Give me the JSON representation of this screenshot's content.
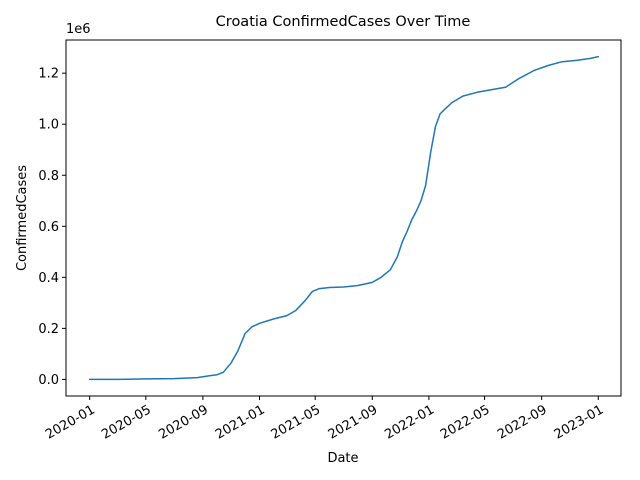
{
  "chart_data": {
    "type": "line",
    "title": "Croatia  ConfirmedCases Over Time",
    "xlabel": "Date",
    "ylabel": "ConfirmedCases",
    "y_offset_label": "1e6",
    "grid": false,
    "legend": false,
    "series_color": "#1f77b4",
    "xlim": [
      "2019-11-11",
      "2023-02-19"
    ],
    "ylim": [
      -0.065,
      1.33
    ],
    "x_ticks": [
      {
        "date": "2020-01-01",
        "label": "2020-01"
      },
      {
        "date": "2020-05-01",
        "label": "2020-05"
      },
      {
        "date": "2020-09-01",
        "label": "2020-09"
      },
      {
        "date": "2021-01-01",
        "label": "2021-01"
      },
      {
        "date": "2021-05-01",
        "label": "2021-05"
      },
      {
        "date": "2021-09-01",
        "label": "2021-09"
      },
      {
        "date": "2022-01-01",
        "label": "2022-01"
      },
      {
        "date": "2022-05-01",
        "label": "2022-05"
      },
      {
        "date": "2022-09-01",
        "label": "2022-09"
      },
      {
        "date": "2023-01-01",
        "label": "2023-01"
      }
    ],
    "y_ticks": [
      {
        "value": 0.0,
        "label": "0.0"
      },
      {
        "value": 0.2,
        "label": "0.2"
      },
      {
        "value": 0.4,
        "label": "0.4"
      },
      {
        "value": 0.6,
        "label": "0.6"
      },
      {
        "value": 0.8,
        "label": "0.8"
      },
      {
        "value": 1.0,
        "label": "1.0"
      },
      {
        "value": 1.2,
        "label": "1.2"
      }
    ],
    "series": [
      {
        "x": [
          "2020-01-01",
          "2020-03-01",
          "2020-05-01",
          "2020-07-01",
          "2020-08-20",
          "2020-09-15",
          "2020-10-01",
          "2020-10-15",
          "2020-11-01",
          "2020-11-15",
          "2020-12-01",
          "2020-12-15",
          "2021-01-01",
          "2021-02-01",
          "2021-03-01",
          "2021-03-20",
          "2021-04-10",
          "2021-04-25",
          "2021-05-10",
          "2021-06-01",
          "2021-07-01",
          "2021-08-01",
          "2021-09-01",
          "2021-09-20",
          "2021-10-10",
          "2021-10-25",
          "2021-11-05",
          "2021-11-15",
          "2021-11-25",
          "2021-12-05",
          "2021-12-15",
          "2021-12-25",
          "2022-01-05",
          "2022-01-15",
          "2022-01-25",
          "2022-02-05",
          "2022-02-20",
          "2022-03-15",
          "2022-04-15",
          "2022-05-15",
          "2022-06-15",
          "2022-07-15",
          "2022-08-15",
          "2022-09-15",
          "2022-10-15",
          "2022-11-15",
          "2022-12-15",
          "2023-01-01"
        ],
        "y": [
          0.0,
          0.0,
          0.002,
          0.003,
          0.007,
          0.014,
          0.018,
          0.028,
          0.065,
          0.11,
          0.18,
          0.205,
          0.22,
          0.237,
          0.25,
          0.27,
          0.31,
          0.345,
          0.356,
          0.36,
          0.362,
          0.368,
          0.38,
          0.4,
          0.43,
          0.48,
          0.54,
          0.58,
          0.625,
          0.66,
          0.7,
          0.76,
          0.89,
          0.99,
          1.04,
          1.06,
          1.085,
          1.11,
          1.125,
          1.135,
          1.145,
          1.18,
          1.21,
          1.23,
          1.245,
          1.25,
          1.258,
          1.265
        ]
      }
    ]
  }
}
